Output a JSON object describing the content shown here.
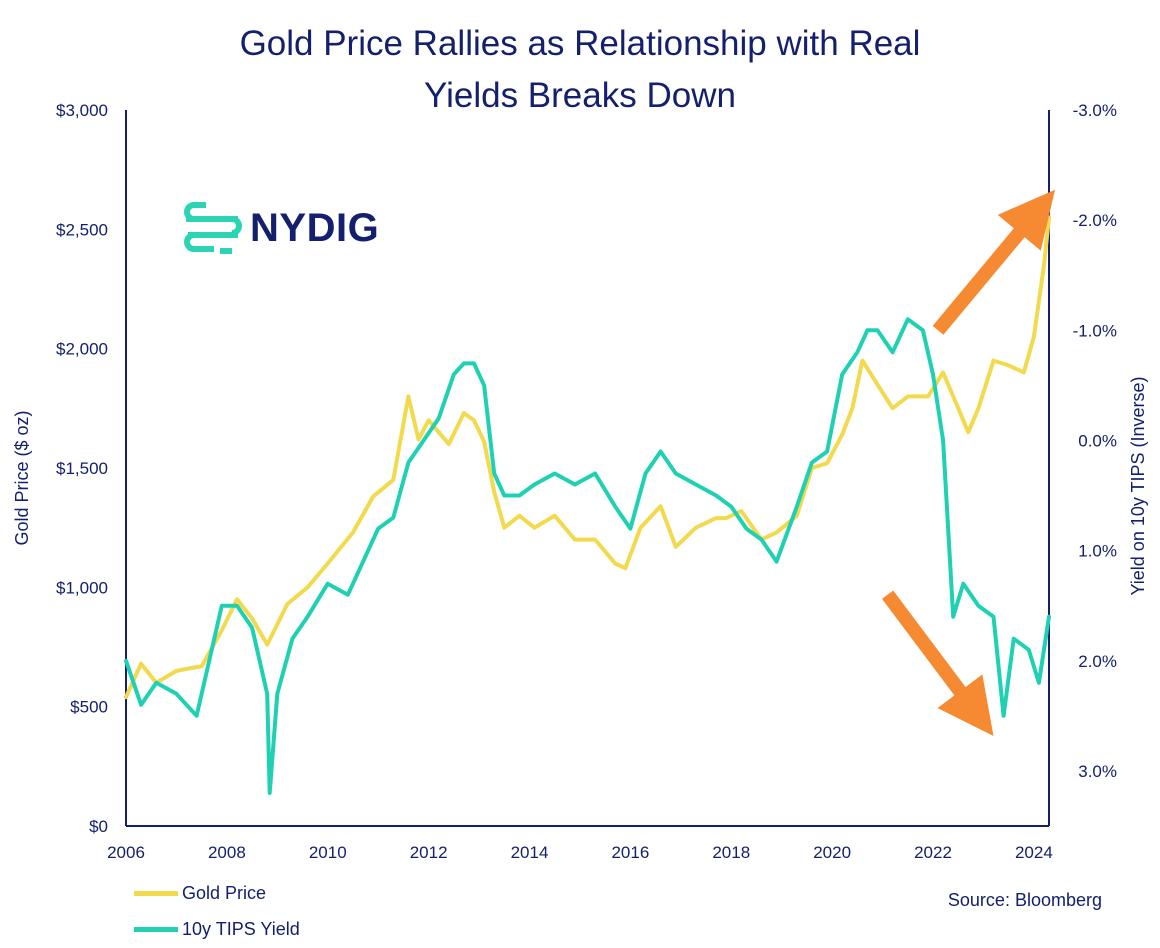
{
  "header": {
    "title_line1": "Gold Price Rallies as Relationship with Real",
    "title_line2": "Yields Breaks Down"
  },
  "logo": {
    "text": "NYDIG",
    "icon": "nydig-logo-icon",
    "color": "#2dd4b4"
  },
  "source": "Source: Bloomberg",
  "legend": [
    {
      "label": "Gold Price",
      "color": "#f2d94e"
    },
    {
      "label": "10y TIPS Yield",
      "color": "#1fd1b2"
    }
  ],
  "chart_data": {
    "type": "line",
    "title": "Gold Price Rallies as Relationship with Real Yields Breaks Down",
    "xlabel": "",
    "ylabel": "Gold Price ($ oz)",
    "y2label": "Yield on 10y TIPS (Inverse)",
    "xlim": [
      2006,
      2024.3
    ],
    "ylim": [
      0,
      3000
    ],
    "y2lim": [
      -3.0,
      3.5
    ],
    "y2_inverted": true,
    "x_ticks": [
      "2006",
      "2008",
      "2010",
      "2012",
      "2014",
      "2016",
      "2018",
      "2020",
      "2022",
      "2024"
    ],
    "y_ticks": [
      "$0",
      "$500",
      "$1,000",
      "$1,500",
      "$2,000",
      "$2,500",
      "$3,000"
    ],
    "y2_ticks": [
      "-3.0%",
      "-2.0%",
      "-1.0%",
      "0.0%",
      "1.0%",
      "2.0%",
      "3.0%"
    ],
    "grid": false,
    "legend_position": "bottom-left",
    "colors": {
      "gold": "#f2d94e",
      "tips": "#1fd1b2",
      "axis": "#14206e",
      "arrow": "#f58a32"
    },
    "series": [
      {
        "name": "Gold Price",
        "axis": "left",
        "x": [
          2006.0,
          2006.3,
          2006.6,
          2007.0,
          2007.5,
          2007.9,
          2008.2,
          2008.5,
          2008.8,
          2009.2,
          2009.6,
          2010.0,
          2010.5,
          2010.9,
          2011.3,
          2011.6,
          2011.8,
          2012.0,
          2012.4,
          2012.7,
          2012.9,
          2013.1,
          2013.3,
          2013.5,
          2013.8,
          2014.1,
          2014.5,
          2014.9,
          2015.3,
          2015.7,
          2015.9,
          2016.2,
          2016.6,
          2016.9,
          2017.3,
          2017.7,
          2017.9,
          2018.2,
          2018.6,
          2018.9,
          2019.3,
          2019.6,
          2019.9,
          2020.2,
          2020.4,
          2020.6,
          2020.9,
          2021.2,
          2021.5,
          2021.9,
          2022.2,
          2022.4,
          2022.7,
          2022.9,
          2023.2,
          2023.5,
          2023.8,
          2024.0,
          2024.2,
          2024.3
        ],
        "values": [
          540,
          680,
          600,
          650,
          670,
          820,
          950,
          870,
          760,
          930,
          1000,
          1100,
          1230,
          1380,
          1450,
          1800,
          1620,
          1700,
          1600,
          1730,
          1700,
          1610,
          1400,
          1250,
          1300,
          1250,
          1300,
          1200,
          1200,
          1100,
          1080,
          1250,
          1340,
          1170,
          1250,
          1290,
          1290,
          1320,
          1200,
          1230,
          1300,
          1500,
          1520,
          1640,
          1750,
          1950,
          1850,
          1750,
          1800,
          1800,
          1900,
          1800,
          1650,
          1750,
          1950,
          1930,
          1900,
          2050,
          2350,
          2550
        ]
      },
      {
        "name": "10y TIPS Yield",
        "axis": "right",
        "x": [
          2006.0,
          2006.3,
          2006.6,
          2007.0,
          2007.4,
          2007.6,
          2007.9,
          2008.2,
          2008.5,
          2008.8,
          2008.85,
          2009.0,
          2009.3,
          2009.6,
          2010.0,
          2010.4,
          2010.7,
          2011.0,
          2011.3,
          2011.6,
          2011.9,
          2012.2,
          2012.5,
          2012.7,
          2012.9,
          2013.1,
          2013.3,
          2013.5,
          2013.8,
          2014.1,
          2014.5,
          2014.9,
          2015.3,
          2015.7,
          2016.0,
          2016.3,
          2016.6,
          2016.9,
          2017.3,
          2017.7,
          2018.0,
          2018.3,
          2018.6,
          2018.9,
          2019.3,
          2019.6,
          2019.9,
          2020.2,
          2020.5,
          2020.7,
          2020.9,
          2021.2,
          2021.5,
          2021.8,
          2022.0,
          2022.2,
          2022.4,
          2022.6,
          2022.9,
          2023.2,
          2023.4,
          2023.6,
          2023.9,
          2024.1,
          2024.3
        ],
        "values": [
          2.0,
          2.4,
          2.2,
          2.3,
          2.5,
          2.1,
          1.5,
          1.5,
          1.7,
          2.3,
          3.2,
          2.3,
          1.8,
          1.6,
          1.3,
          1.4,
          1.1,
          0.8,
          0.7,
          0.2,
          0.0,
          -0.2,
          -0.6,
          -0.7,
          -0.7,
          -0.5,
          0.3,
          0.5,
          0.5,
          0.4,
          0.3,
          0.4,
          0.3,
          0.6,
          0.8,
          0.3,
          0.1,
          0.3,
          0.4,
          0.5,
          0.6,
          0.8,
          0.9,
          1.1,
          0.6,
          0.2,
          0.1,
          -0.6,
          -0.8,
          -1.0,
          -1.0,
          -0.8,
          -1.1,
          -1.0,
          -0.6,
          0.0,
          1.6,
          1.3,
          1.5,
          1.6,
          2.5,
          1.8,
          1.9,
          2.2,
          1.6
        ]
      }
    ],
    "annotations": [
      {
        "type": "arrow",
        "direction": "up-right",
        "from": [
          2022.1,
          -1.0
        ],
        "to": [
          2024.1,
          -2.1
        ]
      },
      {
        "type": "arrow",
        "direction": "down-right",
        "from": [
          2021.1,
          1.4
        ],
        "to": [
          2022.9,
          2.5
        ]
      }
    ]
  }
}
